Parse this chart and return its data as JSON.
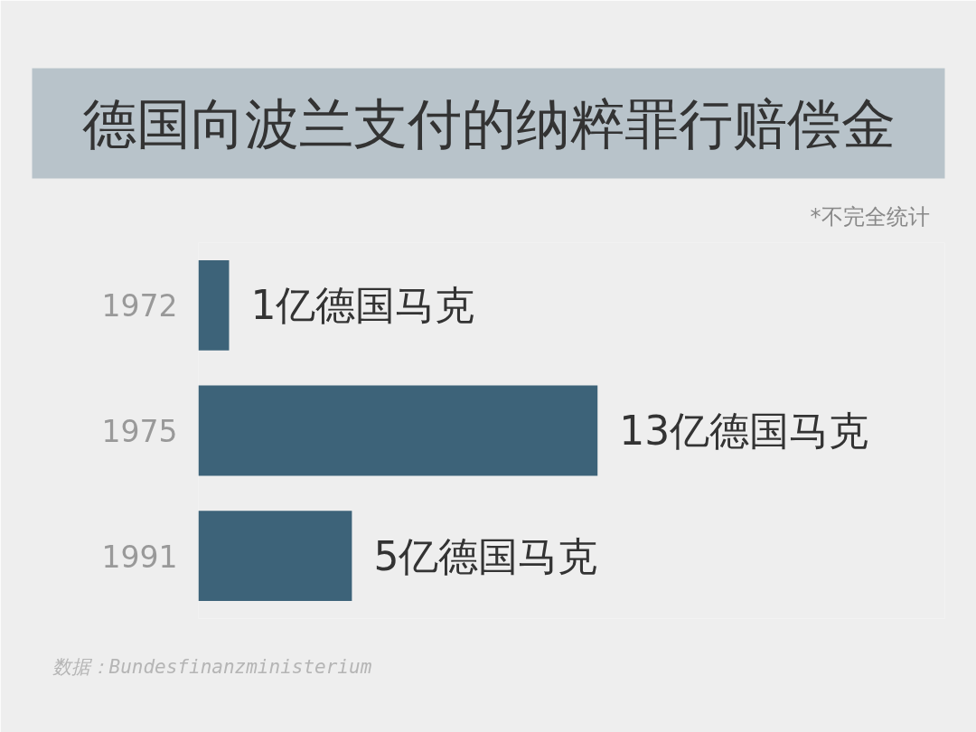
{
  "chart_data": {
    "type": "bar",
    "orientation": "horizontal",
    "title": "德国向波兰支付的纳粹罪行赔偿金",
    "categories": [
      "1972",
      "1975",
      "1991"
    ],
    "values": [
      1,
      13,
      5
    ],
    "color": "#3d6379",
    "value_labels": [
      "1亿德国马克",
      "13亿德国马克",
      "5亿德国马克"
    ],
    "annotations": [
      "*不完全统计",
      "数据：Bundesfinanzministerium"
    ]
  }
}
